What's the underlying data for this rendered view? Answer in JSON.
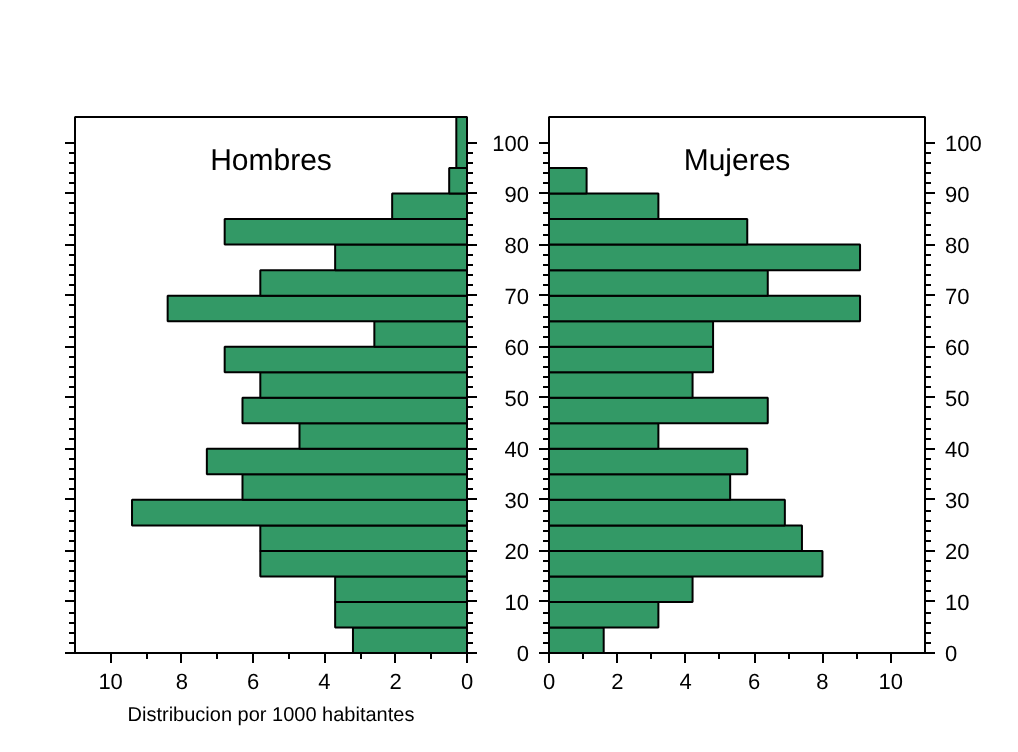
{
  "chart_data": [
    {
      "type": "histogram",
      "orientation": "horizontal",
      "title": "Hombres",
      "xlabel": "Distribucion por 1000 habitantes",
      "color": "#339966",
      "bins": [
        0,
        5,
        10,
        15,
        20,
        25,
        30,
        35,
        40,
        45,
        50,
        55,
        60,
        65,
        70,
        75,
        80,
        85,
        90,
        95,
        105
      ],
      "values": [
        3.2,
        3.7,
        3.7,
        5.8,
        5.8,
        9.4,
        6.3,
        7.3,
        4.7,
        6.3,
        5.8,
        6.8,
        2.6,
        8.4,
        5.8,
        3.7,
        6.8,
        2.1,
        0.5,
        0.3
      ],
      "xlim": [
        11,
        0
      ],
      "xticks": [
        10,
        8,
        6,
        4,
        2,
        0
      ],
      "ylim": [
        0,
        105
      ],
      "yticks": [
        0,
        10,
        20,
        30,
        40,
        50,
        60,
        70,
        80,
        90,
        100
      ],
      "tick_labels": "x"
    },
    {
      "type": "histogram",
      "orientation": "horizontal",
      "title": "Mujeres",
      "color": "#339966",
      "bins": [
        0,
        5,
        10,
        15,
        20,
        25,
        30,
        35,
        40,
        45,
        50,
        55,
        60,
        65,
        70,
        75,
        80,
        85,
        90,
        95
      ],
      "values": [
        1.6,
        3.2,
        4.2,
        8.0,
        7.4,
        6.9,
        5.3,
        5.8,
        3.2,
        6.4,
        4.2,
        4.8,
        4.8,
        9.1,
        6.4,
        9.1,
        5.8,
        3.2,
        1.1
      ],
      "xlim": [
        0,
        11
      ],
      "xticks": [
        0,
        2,
        4,
        6,
        8,
        10
      ],
      "ylim": [
        0,
        105
      ],
      "yticks": [
        0,
        10,
        20,
        30,
        40,
        50,
        60,
        70,
        80,
        90,
        100
      ],
      "y2lim": [
        0,
        105
      ],
      "y2ticks": [
        0,
        10,
        20,
        30,
        40,
        50,
        60,
        70,
        80,
        90,
        100
      ]
    }
  ]
}
